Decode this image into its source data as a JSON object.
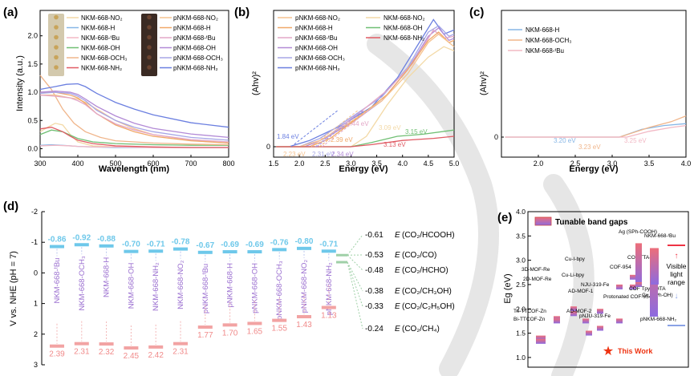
{
  "panel_labels": [
    "(a)",
    "(b)",
    "(c)",
    "(d)",
    "(e)"
  ],
  "colors": {
    "NKM-668-NO2": "#f3d9a6",
    "NKM-668-H": "#86b6e6",
    "NKM-668-tBu": "#f2b8c4",
    "NKM-668-OH": "#6fbf73",
    "NKM-668-OCH3": "#f0b58a",
    "NKM-668-NH2": "#e05a63",
    "pNKM-668-NO2": "#f5c28f",
    "pNKM-668-H": "#f0a869",
    "pNKM-668-tBu": "#e3a7c7",
    "pNKM-668-OH": "#b28ad6",
    "pNKM-668-OCH3": "#a7a6e6",
    "pNKM-668-NH2": "#6b7fe0",
    "cb_bar": "#6ec8ea",
    "vb_bar": "#f2a3a3",
    "label_purple": "#9b6fd0",
    "redox_green": "#9fd0a7"
  },
  "chart_data": [
    {
      "panel": "(a)",
      "type": "line",
      "xlabel": "Wavelength (nm)",
      "ylabel": "Intensity (a.u.)",
      "xlim": [
        300,
        800
      ],
      "ylim": [
        -0.15,
        2.45
      ],
      "xticks": [
        "300",
        "400",
        "500",
        "600",
        "700",
        "800"
      ],
      "yticks": [
        "0.0",
        "0.5",
        "1.0",
        "1.5",
        "2.0"
      ],
      "legend_left": [
        "NKM-668-NO₂",
        "NKM-668-H",
        "NKM-668-ᵗBu",
        "NKM-668-OH",
        "NKM-668-OCH₃",
        "NKM-668-NH₂"
      ],
      "legend_right": [
        "pNKM-668-NO₂",
        "pNKM-668-H",
        "pNKM-668-ᵗBu",
        "pNKM-668-OH",
        "pNKM-668-OCH₃",
        "pNKM-668-NH₂"
      ],
      "series": [
        {
          "key": "NKM-668-NO2",
          "x": [
            300,
            320,
            340,
            360,
            380,
            400,
            440,
            500,
            600,
            700,
            800
          ],
          "y": [
            0.3,
            0.38,
            0.45,
            0.42,
            0.25,
            0.12,
            0.05,
            0.03,
            0.02,
            0.02,
            0.02
          ]
        },
        {
          "key": "NKM-668-H",
          "x": [
            300,
            330,
            360,
            380,
            400,
            440,
            500,
            600,
            700,
            800
          ],
          "y": [
            0.06,
            0.07,
            0.06,
            0.05,
            0.04,
            0.03,
            0.02,
            0.02,
            0.02,
            0.02
          ]
        },
        {
          "key": "NKM-668-tBu",
          "x": [
            300,
            340,
            380,
            400,
            450,
            500,
            600,
            700,
            800
          ],
          "y": [
            0.05,
            0.06,
            0.05,
            0.04,
            0.03,
            0.03,
            0.02,
            0.02,
            0.02
          ]
        },
        {
          "key": "NKM-668-OH",
          "x": [
            300,
            330,
            360,
            380,
            400,
            440,
            500,
            600,
            700,
            800
          ],
          "y": [
            0.25,
            0.33,
            0.3,
            0.24,
            0.18,
            0.12,
            0.09,
            0.07,
            0.06,
            0.06
          ]
        },
        {
          "key": "NKM-668-OCH3",
          "x": [
            300,
            330,
            360,
            390,
            420,
            460,
            500,
            600,
            700,
            800
          ],
          "y": [
            1.3,
            1.05,
            0.7,
            0.45,
            0.3,
            0.2,
            0.14,
            0.1,
            0.08,
            0.07
          ]
        },
        {
          "key": "NKM-668-NH2",
          "x": [
            300,
            330,
            360,
            380,
            400,
            440,
            500,
            600,
            700,
            800
          ],
          "y": [
            0.35,
            0.38,
            0.3,
            0.22,
            0.15,
            0.09,
            0.05,
            0.03,
            0.02,
            0.02
          ]
        },
        {
          "key": "pNKM-668-NO2",
          "x": [
            300,
            340,
            380,
            400,
            420,
            450,
            500,
            550,
            600,
            700,
            800
          ],
          "y": [
            0.95,
            0.95,
            0.9,
            0.88,
            0.82,
            0.7,
            0.5,
            0.35,
            0.25,
            0.15,
            0.1
          ]
        },
        {
          "key": "pNKM-668-H",
          "x": [
            300,
            340,
            380,
            400,
            420,
            450,
            500,
            550,
            600,
            700,
            800
          ],
          "y": [
            1.0,
            1.0,
            0.95,
            0.9,
            0.8,
            0.62,
            0.42,
            0.3,
            0.22,
            0.14,
            0.1
          ]
        },
        {
          "key": "pNKM-668-tBu",
          "x": [
            300,
            340,
            380,
            400,
            420,
            450,
            500,
            550,
            600,
            700,
            800
          ],
          "y": [
            0.95,
            0.93,
            0.9,
            0.85,
            0.78,
            0.62,
            0.44,
            0.33,
            0.25,
            0.16,
            0.12
          ]
        },
        {
          "key": "pNKM-668-OH",
          "x": [
            300,
            340,
            380,
            400,
            420,
            450,
            500,
            550,
            600,
            700,
            800
          ],
          "y": [
            1.0,
            1.02,
            1.0,
            0.96,
            0.88,
            0.75,
            0.58,
            0.45,
            0.36,
            0.26,
            0.2
          ]
        },
        {
          "key": "pNKM-668-OCH3",
          "x": [
            300,
            340,
            380,
            400,
            420,
            450,
            500,
            550,
            600,
            700,
            800
          ],
          "y": [
            0.98,
            1.0,
            0.98,
            0.93,
            0.85,
            0.68,
            0.5,
            0.38,
            0.3,
            0.2,
            0.15
          ]
        },
        {
          "key": "pNKM-668-NH2",
          "x": [
            300,
            340,
            370,
            400,
            420,
            450,
            500,
            550,
            600,
            700,
            800
          ],
          "y": [
            1.05,
            1.1,
            1.14,
            1.15,
            1.1,
            0.98,
            0.82,
            0.7,
            0.6,
            0.46,
            0.38
          ]
        }
      ]
    },
    {
      "panel": "(b)",
      "type": "line",
      "xlabel": "Energy (eV)",
      "ylabel": "(Ahv)²",
      "xlim": [
        1.5,
        5.0
      ],
      "xticks": [
        "1.5",
        "2.0",
        "2.5",
        "3.0",
        "3.5",
        "4.0",
        "4.5",
        "5.0"
      ],
      "yticks": [
        "0"
      ],
      "legend_left": [
        "pNKM-668-NO₂",
        "pNKM-668-H",
        "pNKM-668-ᵗBu",
        "pNKM-668-OH",
        "pNKM-668-OCH₃",
        "pNKM-668-NH₂"
      ],
      "legend_right": [
        "NKM-668-NO₂",
        "NKM-668-OH",
        "NKM-668-NH₂"
      ],
      "annotations": [
        {
          "text": "1.84 eV",
          "key": "pNKM-668-NH2"
        },
        {
          "text": "2.23 eV",
          "key": "pNKM-668-NO2"
        },
        {
          "text": "2.31 eV",
          "key": "pNKM-668-OCH3"
        },
        {
          "text": "2.34 eV",
          "key": "pNKM-668-OH"
        },
        {
          "text": "2.39 eV",
          "key": "pNKM-668-H"
        },
        {
          "text": "2.44 eV",
          "key": "pNKM-668-tBu"
        },
        {
          "text": "3.09 eV",
          "key": "NKM-668-NO2"
        },
        {
          "text": "3.15 eV",
          "key": "NKM-668-OH"
        },
        {
          "text": "3.13 eV",
          "key": "NKM-668-NH2"
        }
      ]
    },
    {
      "panel": "(c)",
      "type": "line",
      "xlabel": "Energy (eV)",
      "ylabel": "(Ahv)²",
      "xlim": [
        1.5,
        4.0
      ],
      "xticks": [
        "2.0",
        "2.5",
        "3.0",
        "3.5",
        "4.0"
      ],
      "yticks": [
        "0"
      ],
      "legend": [
        "NKM-668-H",
        "NKM-668-OCH₃",
        "NKM-668-ᵗBu"
      ],
      "annotations": [
        {
          "text": "3.20 eV",
          "key": "NKM-668-H"
        },
        {
          "text": "3.23 eV",
          "key": "NKM-668-OCH3"
        },
        {
          "text": "3.25 eV",
          "key": "NKM-668-tBu"
        }
      ]
    },
    {
      "panel": "(d)",
      "type": "bar",
      "ylabel": "V vs. NHE (pH = 7)",
      "ylim": [
        -2,
        3
      ],
      "yticks": [
        "-2",
        "-1",
        "0",
        "1",
        "2",
        "3"
      ],
      "categories": [
        "NKM-668-ᵗBu",
        "NKM-668-OCH₃",
        "NKM-668-H",
        "NKM-668-OH",
        "NKM-668-NH₂",
        "NKM-668-NO₂",
        "pNKM-668-ᵗBu",
        "pNKM-668-H",
        "pNKM-668-OH",
        "pNKM-668-OCH₃",
        "pNKM-668-NO₂",
        "pNKM-668-NH₂"
      ],
      "cb": [
        -0.86,
        -0.92,
        -0.88,
        -0.7,
        -0.71,
        -0.78,
        -0.67,
        -0.69,
        -0.69,
        -0.76,
        -0.8,
        -0.71
      ],
      "cb_labels": [
        "-0.86",
        "-0.92",
        "-0.88",
        "-0.70",
        "-0.71",
        "-0.78",
        "-0.67",
        "-0.69",
        "-0.69",
        "-0.76",
        "-0.80",
        "-0.71"
      ],
      "vb": [
        2.39,
        2.31,
        2.32,
        2.45,
        2.42,
        2.31,
        1.77,
        1.7,
        1.65,
        1.55,
        1.43,
        1.13
      ],
      "vb_labels": [
        "2.39",
        "2.31",
        "2.32",
        "2.45",
        "2.42",
        "2.31",
        "1.77",
        "1.70",
        "1.65",
        "1.55",
        "1.43",
        "1.13"
      ],
      "redox": [
        {
          "value": -0.61,
          "label": "-0.61",
          "species": "(CO₂/HCOOH)"
        },
        {
          "value": -0.53,
          "label": "-0.53",
          "species": "(CO₂/CO)"
        },
        {
          "value": -0.48,
          "label": "-0.48",
          "species": "(CO₂/HCHO)"
        },
        {
          "value": -0.38,
          "label": "-0.38",
          "species": "(CO₂/CH₃OH)"
        },
        {
          "value": -0.33,
          "label": "-0.33",
          "species": "(CO₂/C₂H₅OH)"
        },
        {
          "value": -0.24,
          "label": "-0.24",
          "species": "(CO₂/CH₄)"
        }
      ],
      "redox_prefix": "E"
    },
    {
      "panel": "(e)",
      "type": "bar",
      "ylabel": "Eɡ (eV)",
      "ylim": [
        0.8,
        4.0
      ],
      "yticks": [
        "1.0",
        "1.5",
        "2.0",
        "2.5",
        "3.0",
        "3.5",
        "4.0"
      ],
      "legend": "Tunable band gaps",
      "range_label": [
        "Visible",
        "light",
        "range"
      ],
      "this_work": "This Work",
      "categories": [
        "Tri-TTCOF-Zn",
        "Bi-TTCOF-Zn",
        "3D-MOF-Re",
        "2D-MOF-Re",
        "Cu-I-bpy",
        "Cu-Li-bpy",
        "AD-MOF-1",
        "AD-MOF-2",
        "NJU-319-Fe",
        "pNJU-319-Fe",
        "Protonated COF-954",
        "COF-954",
        "COF TTA-TA",
        "COF Tpy-DHTA",
        "Ag (SPh-COOH)",
        "Cu (SPh-OH)",
        "pNKM-668-NH₂",
        "NKM-668-ᵗBu"
      ],
      "values": [
        1.45,
        1.38,
        1.85,
        1.8,
        2.05,
        1.95,
        1.8,
        1.55,
        2.0,
        1.65,
        1.8,
        2.5,
        2.7,
        2.5,
        3.35,
        2.55,
        1.84,
        3.25
      ]
    }
  ]
}
